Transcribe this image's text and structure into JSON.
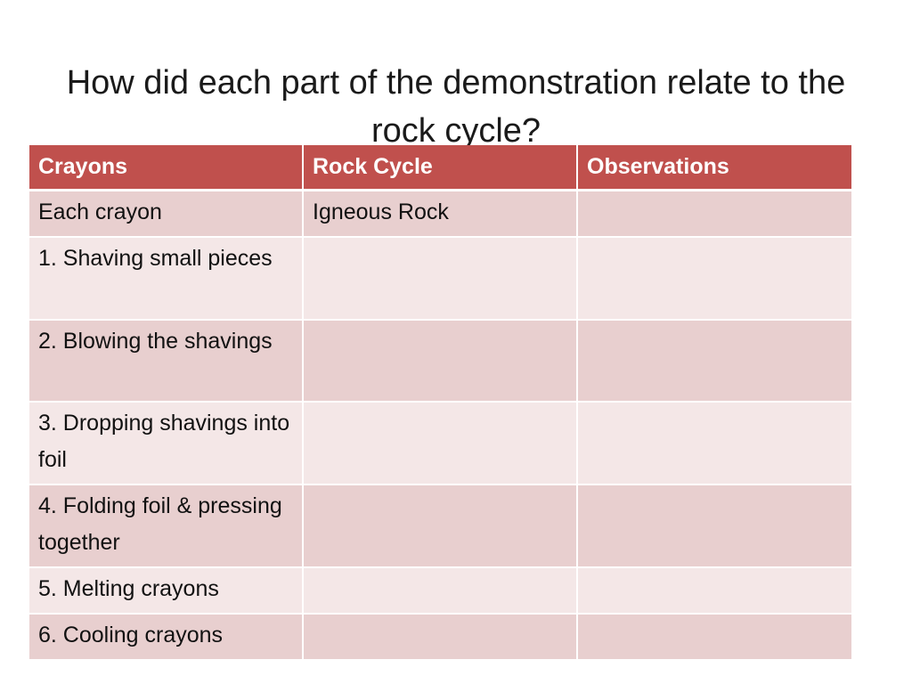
{
  "slide": {
    "title": "How did each part of the demonstration relate to the rock cycle?"
  },
  "table": {
    "headers": [
      "Crayons",
      "Rock Cycle",
      "Observations"
    ],
    "rows": [
      [
        "Each crayon",
        "Igneous Rock",
        ""
      ],
      [
        "1. Shaving small pieces",
        "",
        ""
      ],
      [
        "2. Blowing the shavings",
        "",
        ""
      ],
      [
        "3. Dropping shavings into foil",
        "",
        ""
      ],
      [
        "4. Folding foil & pressing together",
        "",
        ""
      ],
      [
        "5. Melting crayons",
        "",
        ""
      ],
      [
        "6.  Cooling crayons",
        "",
        ""
      ]
    ]
  },
  "colors": {
    "header_background": "#c0504d",
    "row_band_dark": "#e8cfcf",
    "row_band_light": "#f4e7e7"
  }
}
